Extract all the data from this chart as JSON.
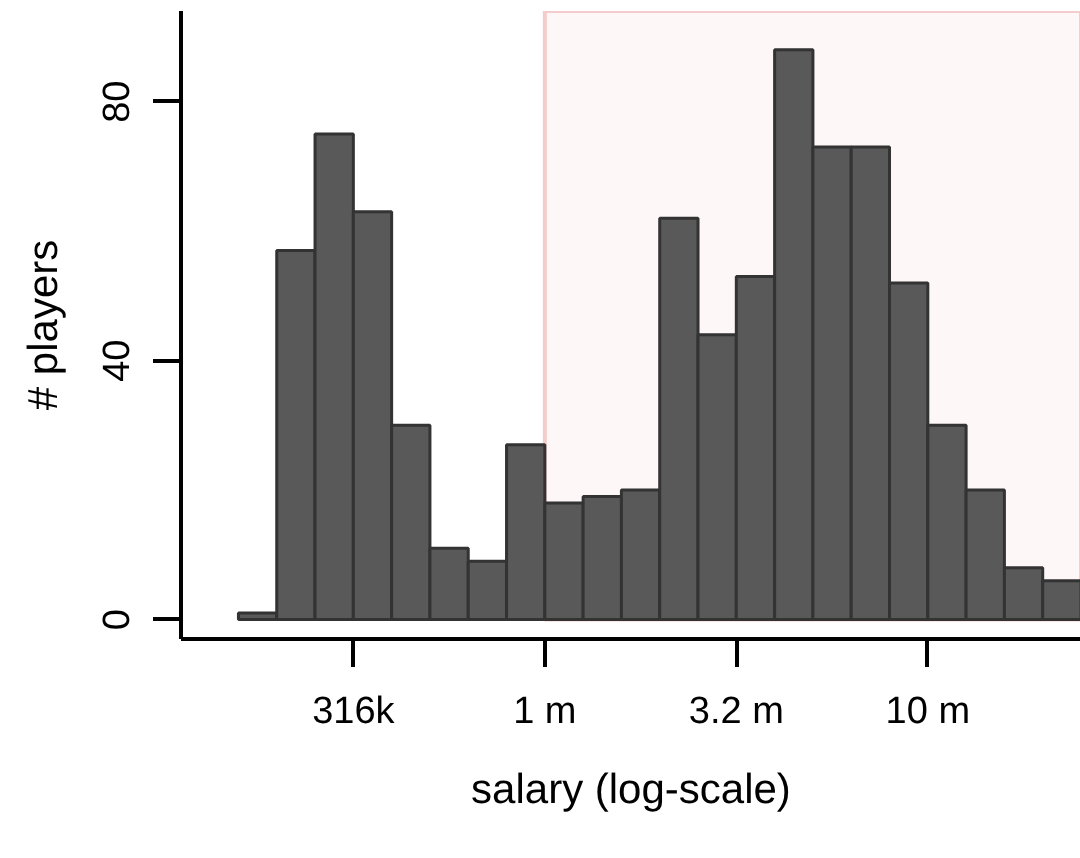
{
  "chart_data": {
    "type": "histogram",
    "xlabel": "salary (log-scale)",
    "ylabel": "# players",
    "log": "x",
    "bins": [
      158489,
      199526,
      251189,
      316228,
      398107,
      501187,
      630957,
      794328,
      1000000,
      1258925,
      1584893,
      1995262,
      2511886,
      3162278,
      3981072,
      5011872,
      6309573,
      7943282,
      10000000,
      12589254,
      15848932,
      19952623,
      25118864
    ],
    "values": [
      1,
      57,
      75,
      63,
      30,
      11,
      9,
      27,
      18,
      19,
      20,
      62,
      44,
      53,
      88,
      73,
      73,
      52,
      30,
      20,
      8,
      6
    ],
    "color": "#595959",
    "xlim": [
      112202,
      25118864
    ],
    "ylim": [
      -3,
      94
    ],
    "xticks": [
      {
        "value": 316228,
        "label": "316k"
      },
      {
        "value": 1000000,
        "label": "1 m"
      },
      {
        "value": 3162278,
        "label": "3.2 m"
      },
      {
        "value": 10000000,
        "label": "10 m"
      }
    ],
    "yticks": [
      0,
      40,
      80
    ],
    "grid": false,
    "bands": [
      {
        "axis": "x",
        "from": 1000000,
        "to": 25118864,
        "color": "#f4cccc"
      }
    ]
  }
}
